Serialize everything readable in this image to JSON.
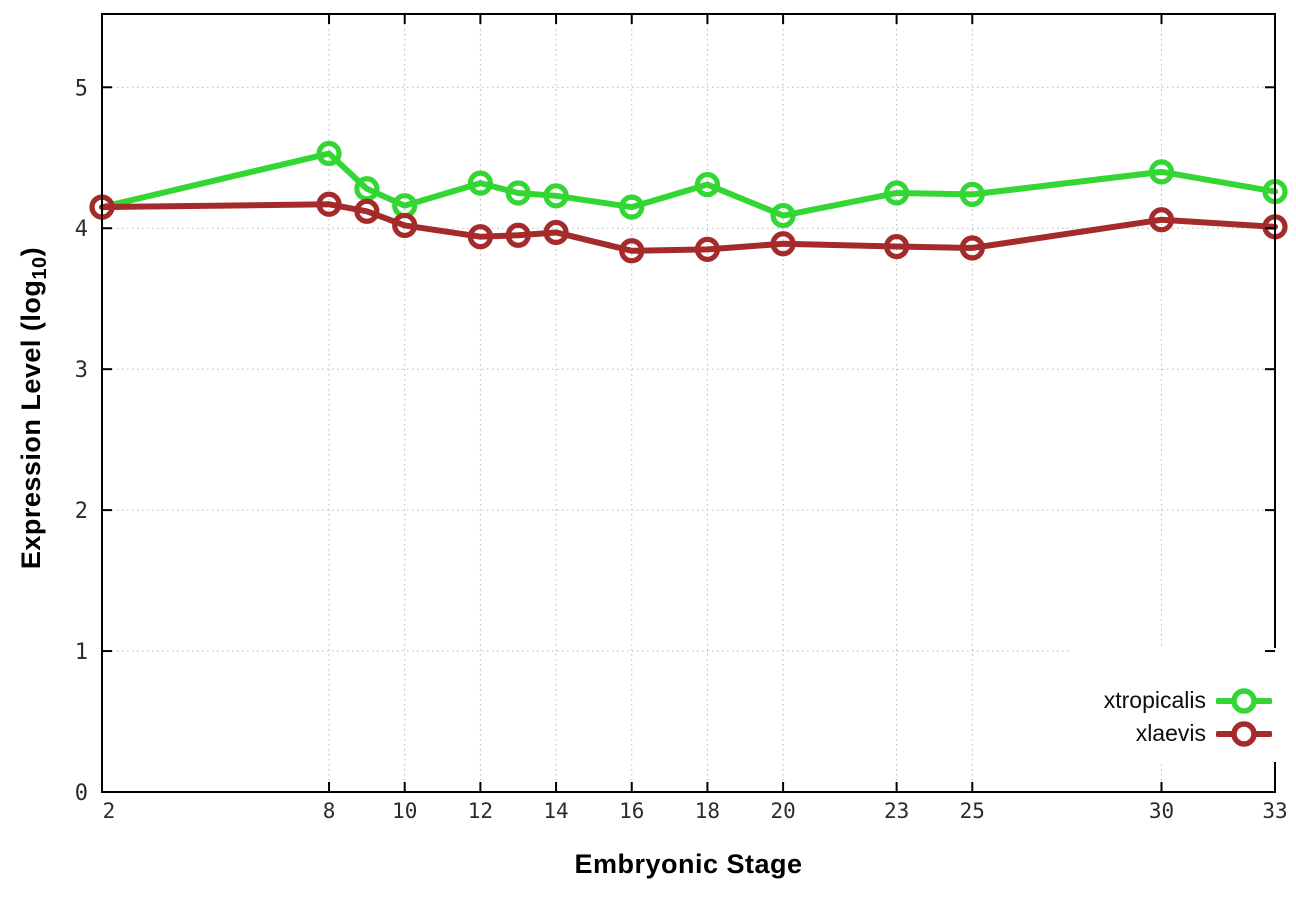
{
  "figure": {
    "background": "#ffffff",
    "ylabel_main": "Expression Level (log",
    "ylabel_sub": "10",
    "ylabel_end": ")"
  },
  "chart_data": {
    "type": "line",
    "title": "",
    "xlabel": "Embryonic Stage",
    "ylabel": "Expression Level (log10)",
    "x": [
      2,
      8,
      9,
      10,
      12,
      13,
      14,
      16,
      18,
      20,
      23,
      25,
      30,
      33
    ],
    "xticks": [
      2,
      8,
      10,
      12,
      14,
      16,
      18,
      20,
      23,
      25,
      30,
      33
    ],
    "xtick_labels": [
      "2",
      "8",
      "10",
      "12",
      "14",
      "16",
      "18",
      "20",
      "23",
      "25",
      "30",
      "33"
    ],
    "yticks": [
      0,
      1,
      2,
      3,
      4,
      5
    ],
    "ytick_labels": [
      "0",
      "1",
      "2",
      "3",
      "4",
      "5"
    ],
    "xlim": [
      2,
      33
    ],
    "ylim": [
      0,
      5.52
    ],
    "grid": true,
    "grid_style": "dotted",
    "legend_position": "inside-bottom-right",
    "series": [
      {
        "name": "xtropicalis",
        "color": "#33d633",
        "marker": "open-circle",
        "values": [
          4.15,
          4.53,
          4.28,
          4.16,
          4.32,
          4.25,
          4.23,
          4.15,
          4.31,
          4.09,
          4.25,
          4.24,
          4.4,
          4.26
        ]
      },
      {
        "name": "xlaevis",
        "color": "#a52a2a",
        "marker": "open-circle",
        "values": [
          4.15,
          4.17,
          4.12,
          4.02,
          3.94,
          3.95,
          3.97,
          3.84,
          3.85,
          3.89,
          3.87,
          3.86,
          4.06,
          4.01
        ]
      }
    ],
    "colors": {
      "grid": "#b8b8b8",
      "axis": "#000000",
      "tick_labels": "#2b2b2b",
      "background": "#ffffff"
    }
  }
}
